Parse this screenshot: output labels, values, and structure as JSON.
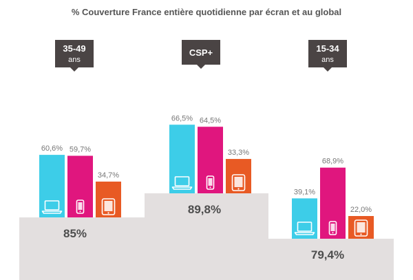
{
  "chart_data": {
    "type": "bar",
    "title": "% Couverture France entière quotidienne par écran et au global",
    "unit": "%",
    "devices": [
      {
        "name": "computer",
        "icon": "laptop-icon",
        "color": "#3dcde8"
      },
      {
        "name": "smartphone",
        "icon": "smartphone-icon",
        "color": "#e0167e"
      },
      {
        "name": "tablet",
        "icon": "tablet-icon",
        "color": "#e85a24"
      }
    ],
    "groups": [
      {
        "title": "35-49",
        "subtitle": "ans",
        "values": [
          60.6,
          59.7,
          34.7
        ],
        "labels": [
          "60,6%",
          "59,7%",
          "34,7%"
        ],
        "total": 85,
        "total_label": "85%"
      },
      {
        "title": "CSP+",
        "subtitle": "",
        "values": [
          66.5,
          64.5,
          33.3
        ],
        "labels": [
          "66,5%",
          "64,5%",
          "33,3%"
        ],
        "total": 89.8,
        "total_label": "89,8%"
      },
      {
        "title": "15-34",
        "subtitle": "ans",
        "values": [
          39.1,
          68.9,
          22.0
        ],
        "labels": [
          "39,1%",
          "68,9%",
          "22,0%"
        ],
        "total": 79.4,
        "total_label": "79,4%"
      }
    ],
    "colors": {
      "platform": "#e3dfdf",
      "callout": "#4a4444"
    }
  }
}
